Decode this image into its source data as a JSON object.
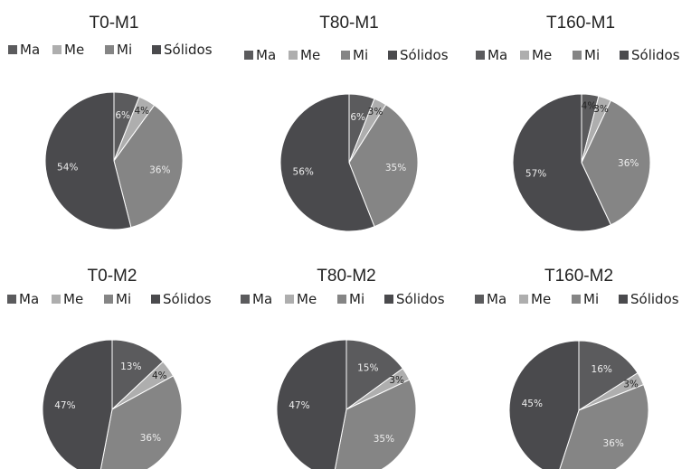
{
  "colors": {
    "Ma": "#5b5b5d",
    "Me": "#aeaeae",
    "Mi": "#858585",
    "Sólidos": "#4a4a4d",
    "label_light": "#eeeeee",
    "label_dark": "#222222",
    "slice_border": "#ffffff"
  },
  "chart_data": [
    {
      "type": "pie",
      "title": "T0-M1",
      "legend": [
        "Ma",
        "Me",
        "Mi",
        "Sólidos"
      ],
      "slices": [
        {
          "name": "Ma",
          "value": 6,
          "label": "6%"
        },
        {
          "name": "Me",
          "value": 4,
          "label": "4%"
        },
        {
          "name": "Mi",
          "value": 36,
          "label": "36%"
        },
        {
          "name": "Sólidos",
          "value": 54,
          "label": "54%"
        }
      ]
    },
    {
      "type": "pie",
      "title": "T80-M1",
      "legend": [
        "Ma",
        "Me",
        "Mi",
        "Sólidos"
      ],
      "slices": [
        {
          "name": "Ma",
          "value": 6,
          "label": "6%"
        },
        {
          "name": "Me",
          "value": 3,
          "label": "3%"
        },
        {
          "name": "Mi",
          "value": 35,
          "label": "35%"
        },
        {
          "name": "Sólidos",
          "value": 56,
          "label": "56%"
        }
      ]
    },
    {
      "type": "pie",
      "title": "T160-M1",
      "legend": [
        "Ma",
        "Me",
        "Mi",
        "Sólidos"
      ],
      "slices": [
        {
          "name": "Ma",
          "value": 4,
          "label": "4%"
        },
        {
          "name": "Me",
          "value": 3,
          "label": "3%"
        },
        {
          "name": "Mi",
          "value": 36,
          "label": "36%"
        },
        {
          "name": "Sólidos",
          "value": 57,
          "label": "57%"
        }
      ]
    },
    {
      "type": "pie",
      "title": "T0-M2",
      "legend": [
        "Ma",
        "Me",
        "Mi",
        "Sólidos"
      ],
      "slices": [
        {
          "name": "Ma",
          "value": 13,
          "label": "13%"
        },
        {
          "name": "Me",
          "value": 4,
          "label": "4%"
        },
        {
          "name": "Mi",
          "value": 36,
          "label": "36%"
        },
        {
          "name": "Sólidos",
          "value": 47,
          "label": "47%"
        }
      ]
    },
    {
      "type": "pie",
      "title": "T80-M2",
      "legend": [
        "Ma",
        "Me",
        "Mi",
        "Sólidos"
      ],
      "slices": [
        {
          "name": "Ma",
          "value": 15,
          "label": "15%"
        },
        {
          "name": "Me",
          "value": 3,
          "label": "3%"
        },
        {
          "name": "Mi",
          "value": 35,
          "label": "35%"
        },
        {
          "name": "Sólidos",
          "value": 47,
          "label": "47%"
        }
      ]
    },
    {
      "type": "pie",
      "title": "T160-M2",
      "legend": [
        "Ma",
        "Me",
        "Mi",
        "Sólidos"
      ],
      "slices": [
        {
          "name": "Ma",
          "value": 16,
          "label": "16%"
        },
        {
          "name": "Me",
          "value": 3,
          "label": "3%"
        },
        {
          "name": "Mi",
          "value": 36,
          "label": "36%"
        },
        {
          "name": "Sólidos",
          "value": 45,
          "label": "45%"
        }
      ]
    }
  ]
}
